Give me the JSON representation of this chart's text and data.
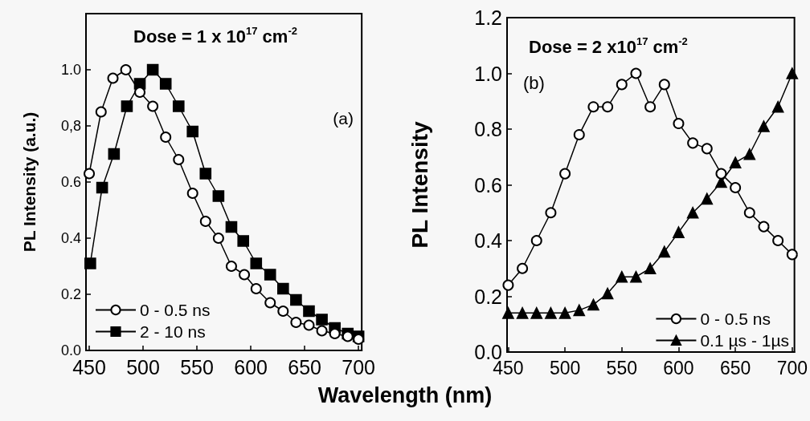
{
  "chart_data": [
    {
      "type": "line",
      "title": "Dose = 1 x 10$^{17}$ cm$^{-2}$",
      "xlabel": "Wavelength (nm)",
      "ylabel": "PL Intensity (a.u.)",
      "annotations": [
        "(a)"
      ],
      "xlim": [
        447,
        703
      ],
      "xticks": [
        450,
        500,
        550,
        600,
        650,
        700
      ],
      "ylim": [
        0,
        1.2
      ],
      "yticks": [
        {
          "value": 0,
          "label": "0.0"
        },
        0.2,
        0.4,
        0.6,
        {
          "value": 0.8,
          "label": "0,8"
        },
        {
          "value": 1,
          "label": "1.0"
        },
        {
          "value": 1.2,
          "label": null
        }
      ],
      "grid": false,
      "legend": "bottom left",
      "line_style": "solid",
      "series": [
        {
          "name": "0 - 0.5 ns",
          "color": "#000000",
          "marker": "circle",
          "x": [
            450,
            461,
            472,
            484,
            497,
            509,
            521,
            533,
            546,
            558,
            570,
            582,
            594,
            605,
            618,
            630,
            642,
            654,
            666,
            678,
            690,
            700
          ],
          "values": [
            0.63,
            0.85,
            0.97,
            1.0,
            0.92,
            0.87,
            0.76,
            0.68,
            0.56,
            0.46,
            0.4,
            0.3,
            0.27,
            0.22,
            0.17,
            0.14,
            0.1,
            0.09,
            0.07,
            0.06,
            0.05,
            0.04
          ]
        },
        {
          "name": "2 - 10 ns",
          "color": "#000000",
          "marker": "square",
          "x": [
            451,
            462,
            473,
            485,
            497,
            509,
            521,
            533,
            546,
            558,
            570,
            582,
            593,
            605,
            618,
            630,
            642,
            654,
            666,
            678,
            690,
            700
          ],
          "values": [
            0.31,
            0.58,
            0.7,
            0.87,
            0.95,
            1.0,
            0.95,
            0.87,
            0.78,
            0.63,
            0.55,
            0.44,
            0.39,
            0.31,
            0.27,
            0.22,
            0.18,
            0.14,
            0.11,
            0.08,
            0.06,
            0.05
          ]
        }
      ]
    },
    {
      "type": "line",
      "title": "Dose = 2 x10$^{17}$ cm$^{-2}$",
      "ylabel": "PL Intensity",
      "annotations": [
        "(b)"
      ],
      "xlim": [
        449,
        702
      ],
      "xticks": [
        450,
        500,
        550,
        600,
        650,
        700
      ],
      "ylim": [
        0,
        1.2
      ],
      "yticks": [
        {
          "value": 0,
          "label": "0.0"
        },
        0.2,
        0.4,
        0.6,
        0.8,
        {
          "value": 1,
          "label": "1.0"
        },
        1.2
      ],
      "grid": false,
      "legend": "bottom right",
      "line_style": "solid",
      "series": [
        {
          "name": "0 - 0.5 ns",
          "color": "#000000",
          "marker": "circle",
          "x": [
            450,
            462.5,
            475,
            487.5,
            500,
            512.5,
            525,
            537.5,
            550,
            562.5,
            575,
            587.5,
            600,
            612.5,
            625,
            637.5,
            650,
            662.5,
            675,
            687.5,
            700
          ],
          "values": [
            0.24,
            0.3,
            0.4,
            0.5,
            0.64,
            0.78,
            0.88,
            0.88,
            0.96,
            1.0,
            0.88,
            0.96,
            0.82,
            0.75,
            0.73,
            0.64,
            0.59,
            0.5,
            0.45,
            0.4,
            0.35
          ]
        },
        {
          "name": "0.1 µs - 1µs",
          "color": "#000000",
          "marker": "triangle",
          "x": [
            450,
            462.5,
            475,
            487.5,
            500,
            512.5,
            525,
            537.5,
            550,
            562.5,
            575,
            587.5,
            600,
            612.5,
            625,
            637.5,
            650,
            662.5,
            675,
            687.5,
            700
          ],
          "values": [
            0.14,
            0.14,
            0.14,
            0.14,
            0.14,
            0.15,
            0.17,
            0.21,
            0.27,
            0.27,
            0.3,
            0.36,
            0.43,
            0.5,
            0.55,
            0.61,
            0.68,
            0.71,
            0.81,
            0.88,
            1.0
          ]
        }
      ]
    }
  ]
}
